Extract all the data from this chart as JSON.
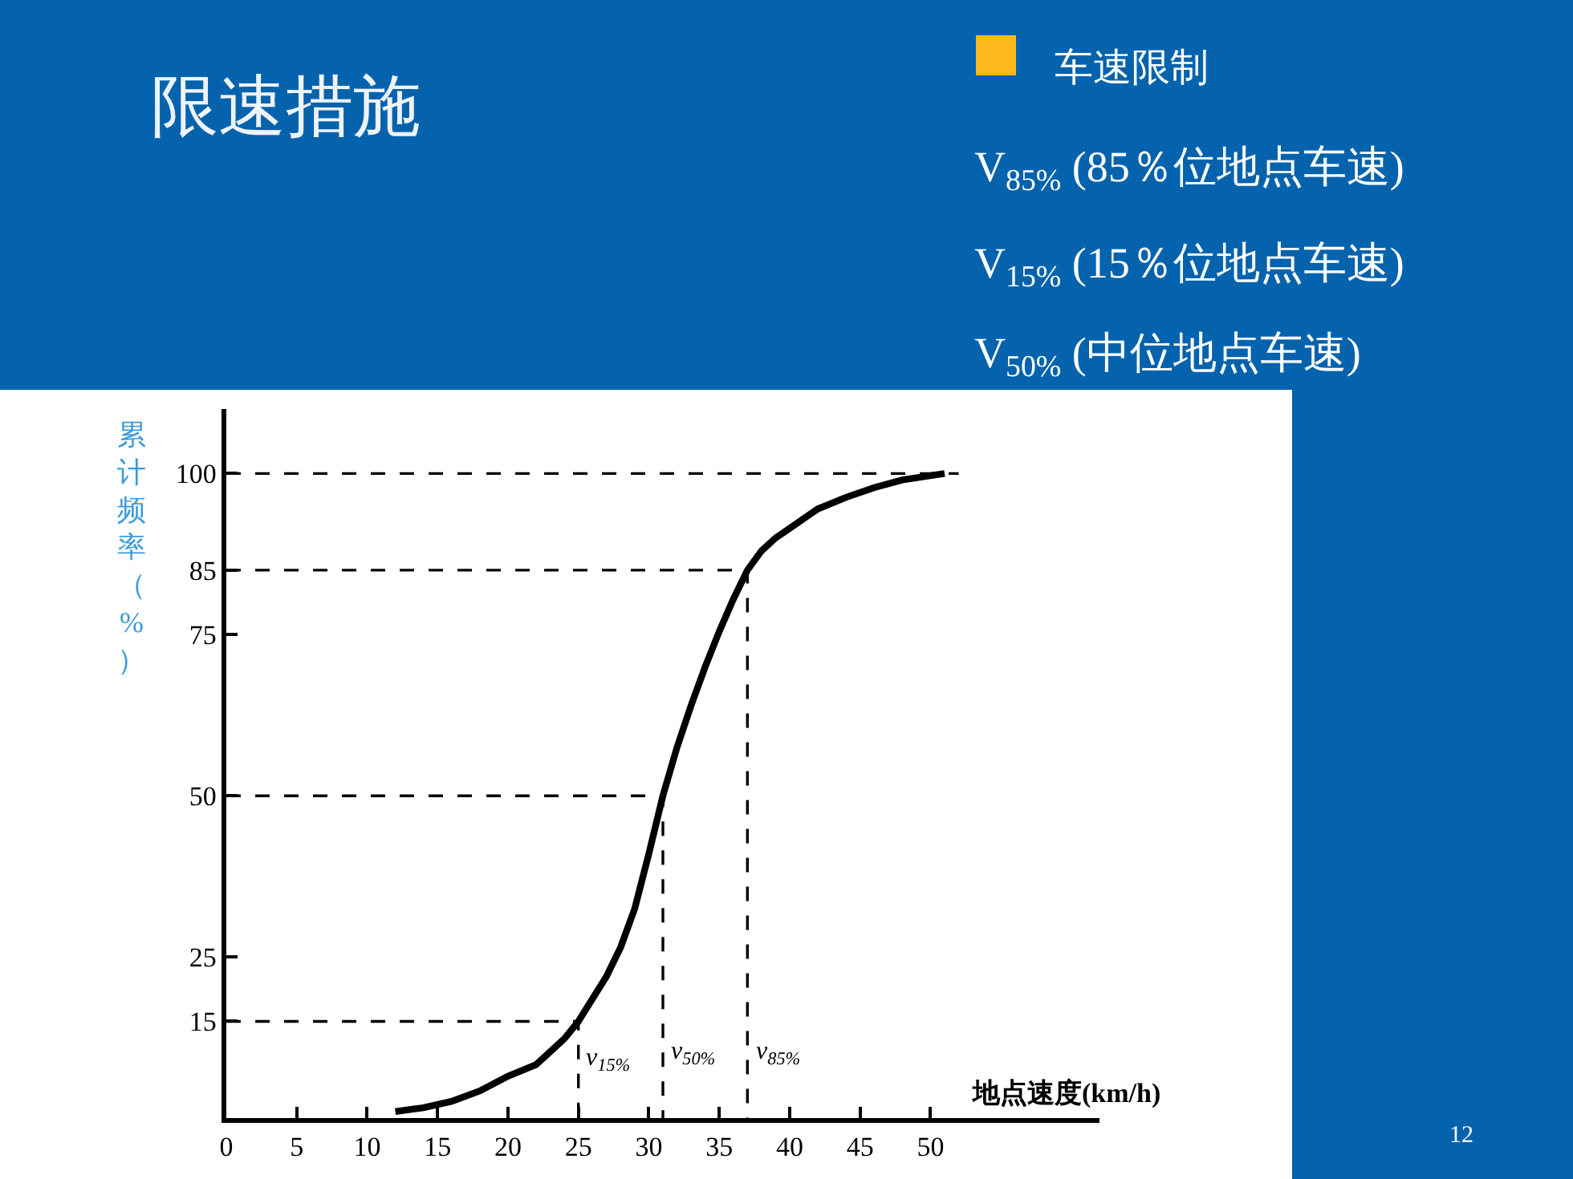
{
  "chart_data": {
    "type": "line",
    "title": "限速措施",
    "xlabel": "地点速度(km/h)",
    "ylabel": "累计频率（%）",
    "annotations": [
      "车速限制",
      "V$_{85%}$ (85％位地点车速)",
      "V$_{15%}$ (15％位地点车速)",
      "V$_{50%}$ (中位地点车速)",
      "12",
      {
        "text": "v$_{15%}$",
        "x": 25,
        "y": 9
      },
      {
        "text": "v$_{50%}$",
        "x": 31,
        "y": 10
      },
      {
        "text": "v$_{85%}$",
        "x": 37,
        "y": 10
      }
    ],
    "series": [
      {
        "color": "#000000",
        "x": [
          12,
          14,
          16,
          18,
          20,
          22,
          24,
          25,
          26,
          27,
          28,
          29,
          30,
          31,
          32,
          33,
          34,
          35,
          36,
          37,
          38,
          39,
          40,
          42,
          44,
          46,
          48,
          51
        ],
        "values": [
          1,
          1.6,
          2.6,
          4.2,
          6.5,
          8.3,
          12.3,
          15,
          18.5,
          22,
          26.5,
          32.5,
          41,
          50,
          57.5,
          64,
          70,
          75.5,
          80.5,
          85,
          88,
          90,
          91.5,
          94.5,
          96.3,
          97.8,
          99,
          100
        ]
      },
      {
        "color": "#000000",
        "line_style": "dashed",
        "x": [
          0,
          52
        ],
        "values": [
          100,
          100
        ]
      },
      {
        "color": "#000000",
        "line_style": "dashed",
        "x": [
          0,
          37,
          37
        ],
        "values": [
          85,
          85,
          0
        ]
      },
      {
        "color": "#000000",
        "line_style": "dashed",
        "x": [
          0,
          31,
          31
        ],
        "values": [
          50,
          50,
          0
        ]
      },
      {
        "color": "#000000",
        "line_style": "dashed",
        "x": [
          0,
          25,
          25
        ],
        "values": [
          15,
          15,
          0
        ]
      }
    ],
    "xlim": [
      0,
      62
    ],
    "ylim": [
      0,
      110
    ],
    "xticks": [
      0,
      5,
      10,
      15,
      20,
      25,
      30,
      35,
      40,
      45,
      50
    ],
    "yticks": [
      15,
      25,
      50,
      75,
      85,
      100
    ]
  }
}
